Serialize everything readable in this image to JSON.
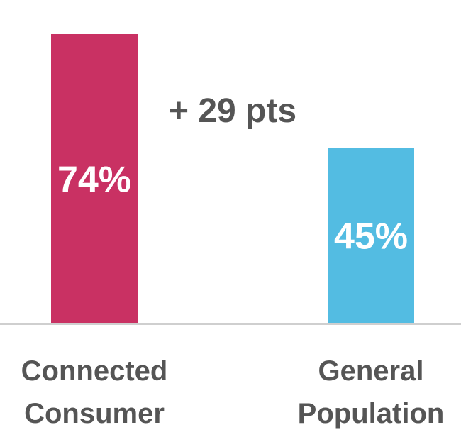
{
  "chart_data": {
    "type": "bar",
    "categories": [
      [
        "Connected",
        "Consumer"
      ],
      [
        "General",
        "Population"
      ]
    ],
    "values": [
      74,
      45
    ],
    "value_labels": [
      "74%",
      "45%"
    ],
    "colors": [
      "#c93163",
      "#53bce2"
    ],
    "annotation": "+ 29 pts",
    "ylim": [
      0,
      74
    ],
    "grid": false,
    "title": "",
    "xlabel": "",
    "ylabel": ""
  }
}
